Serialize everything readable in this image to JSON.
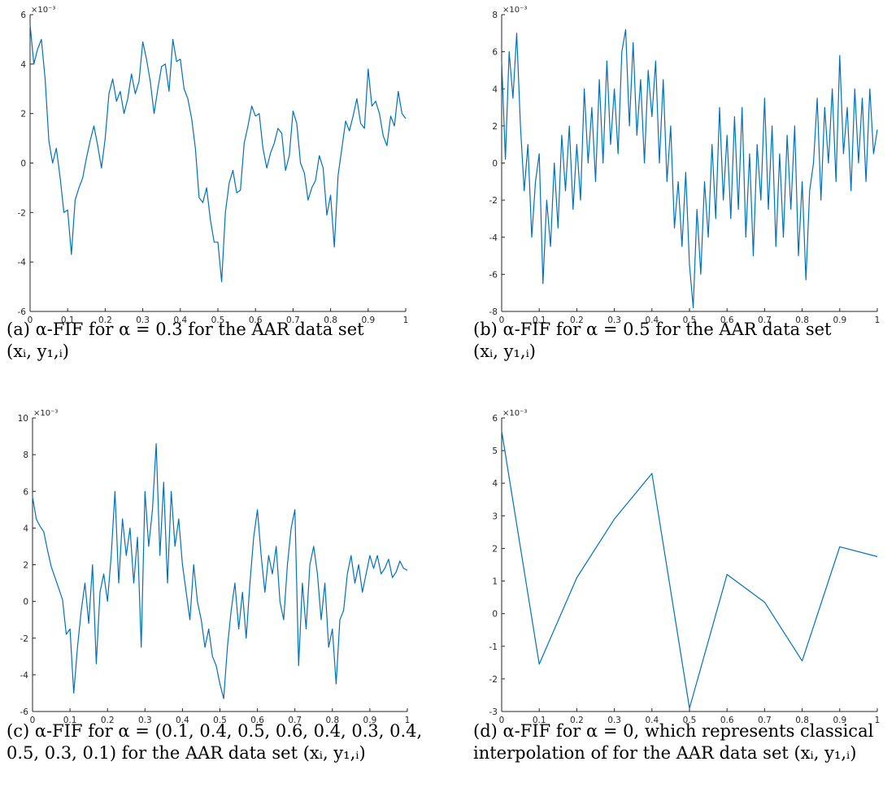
{
  "chart_data": [
    {
      "type": "line",
      "caption": "(a) α-FIF for α = 0.3 for the AAR data set (xᵢ, y₁,ᵢ)",
      "caption_line1": "(a) α-FIF for α = 0.3 for the AAR data set",
      "caption_line2": "(xᵢ, y₁,ᵢ)",
      "exponent_label": "×10⁻³",
      "xlim": [
        0,
        1
      ],
      "ylim": [
        -6,
        6
      ],
      "xticks": [
        "0",
        "0.1",
        "0.2",
        "0.3",
        "0.4",
        "0.5",
        "0.6",
        "0.7",
        "0.8",
        "0.9",
        "1"
      ],
      "yticks": [
        "-6",
        "-4",
        "-2",
        "0",
        "2",
        "4",
        "6"
      ],
      "line_color": "#0072BD",
      "series": [
        {
          "x": [
            0,
            0.01,
            0.02,
            0.03,
            0.04,
            0.05,
            0.06,
            0.07,
            0.08,
            0.09,
            0.1,
            0.11,
            0.12,
            0.13,
            0.14,
            0.15,
            0.16,
            0.17,
            0.18,
            0.19,
            0.2,
            0.21,
            0.22,
            0.23,
            0.24,
            0.25,
            0.26,
            0.27,
            0.28,
            0.29,
            0.3,
            0.31,
            0.32,
            0.33,
            0.34,
            0.35,
            0.36,
            0.37,
            0.38,
            0.39,
            0.4,
            0.41,
            0.42,
            0.43,
            0.44,
            0.45,
            0.46,
            0.47,
            0.48,
            0.49,
            0.5,
            0.51,
            0.52,
            0.53,
            0.54,
            0.55,
            0.56,
            0.57,
            0.58,
            0.59,
            0.6,
            0.61,
            0.62,
            0.63,
            0.64,
            0.65,
            0.66,
            0.67,
            0.68,
            0.69,
            0.7,
            0.71,
            0.72,
            0.73,
            0.74,
            0.75,
            0.76,
            0.77,
            0.78,
            0.79,
            0.8,
            0.81,
            0.82,
            0.83,
            0.84,
            0.85,
            0.86,
            0.87,
            0.88,
            0.89,
            0.9,
            0.91,
            0.92,
            0.93,
            0.94,
            0.95,
            0.96,
            0.97,
            0.98,
            0.99,
            1
          ],
          "y": [
            5.6,
            4.0,
            4.6,
            5.0,
            3.4,
            0.9,
            0.0,
            0.6,
            -0.6,
            -2.0,
            -1.9,
            -3.7,
            -1.5,
            -1.0,
            -0.6,
            0.2,
            0.9,
            1.5,
            0.7,
            -0.2,
            1.0,
            2.8,
            3.4,
            2.5,
            2.9,
            2.0,
            2.6,
            3.6,
            2.8,
            3.3,
            4.9,
            4.2,
            3.3,
            2.0,
            3.0,
            3.9,
            4.0,
            2.9,
            5.0,
            4.1,
            4.2,
            3.0,
            2.6,
            1.8,
            0.6,
            -1.4,
            -1.6,
            -1.0,
            -2.3,
            -3.2,
            -3.2,
            -4.8,
            -2.0,
            -0.8,
            -0.3,
            -1.2,
            -1.1,
            0.8,
            1.5,
            2.3,
            1.9,
            2.0,
            0.6,
            -0.2,
            0.4,
            0.8,
            1.4,
            1.2,
            -0.3,
            0.3,
            2.1,
            1.6,
            0.0,
            -0.4,
            -1.5,
            -1.0,
            -0.7,
            0.3,
            -0.2,
            -2.1,
            -1.3,
            -3.4,
            -0.5,
            0.6,
            1.7,
            1.3,
            1.9,
            2.6,
            1.6,
            1.4,
            3.8,
            2.3,
            2.5,
            2.0,
            1.1,
            0.7,
            1.9,
            1.5,
            2.9,
            2.0,
            1.8
          ]
        }
      ]
    },
    {
      "type": "line",
      "caption": "(b) α-FIF for α = 0.5 for the AAR data set (xᵢ, y₁,ᵢ)",
      "caption_line1": "(b) α-FIF for α = 0.5 for the AAR data set",
      "caption_line2": "(xᵢ, y₁,ᵢ)",
      "exponent_label": "×10⁻³",
      "xlim": [
        0,
        1
      ],
      "ylim": [
        -8,
        8
      ],
      "xticks": [
        "0",
        "0.1",
        "0.2",
        "0.3",
        "0.4",
        "0.5",
        "0.6",
        "0.7",
        "0.8",
        "0.9",
        "1"
      ],
      "yticks": [
        "-8",
        "-6",
        "-4",
        "-2",
        "0",
        "2",
        "4",
        "6",
        "8"
      ],
      "line_color": "#0072BD",
      "series": [
        {
          "x": [
            0,
            0.01,
            0.02,
            0.03,
            0.04,
            0.05,
            0.06,
            0.07,
            0.08,
            0.09,
            0.1,
            0.11,
            0.12,
            0.13,
            0.14,
            0.15,
            0.16,
            0.17,
            0.18,
            0.19,
            0.2,
            0.21,
            0.22,
            0.23,
            0.24,
            0.25,
            0.26,
            0.27,
            0.28,
            0.29,
            0.3,
            0.31,
            0.32,
            0.33,
            0.34,
            0.35,
            0.36,
            0.37,
            0.38,
            0.39,
            0.4,
            0.41,
            0.42,
            0.43,
            0.44,
            0.45,
            0.46,
            0.47,
            0.48,
            0.49,
            0.5,
            0.51,
            0.52,
            0.53,
            0.54,
            0.55,
            0.56,
            0.57,
            0.58,
            0.59,
            0.6,
            0.61,
            0.62,
            0.63,
            0.64,
            0.65,
            0.66,
            0.67,
            0.68,
            0.69,
            0.7,
            0.71,
            0.72,
            0.73,
            0.74,
            0.75,
            0.76,
            0.77,
            0.78,
            0.79,
            0.8,
            0.81,
            0.82,
            0.83,
            0.84,
            0.85,
            0.86,
            0.87,
            0.88,
            0.89,
            0.9,
            0.91,
            0.92,
            0.93,
            0.94,
            0.95,
            0.96,
            0.97,
            0.98,
            0.99,
            1
          ],
          "y": [
            5.5,
            0.2,
            6.0,
            3.5,
            7.0,
            2.0,
            -1.5,
            1.0,
            -4.0,
            -1.0,
            0.5,
            -6.5,
            -2.0,
            -4.5,
            0.0,
            -3.5,
            1.5,
            -1.5,
            2.0,
            -2.5,
            1.0,
            -2.0,
            4.0,
            0.0,
            3.0,
            -1.0,
            4.5,
            0.0,
            5.5,
            1.0,
            4.0,
            0.5,
            6.0,
            7.2,
            2.0,
            6.5,
            1.5,
            4.5,
            0.0,
            5.0,
            2.5,
            5.5,
            0.0,
            4.5,
            -1.0,
            2.0,
            -3.5,
            -1.0,
            -4.5,
            -0.5,
            -5.5,
            -7.8,
            -2.5,
            -6.0,
            -1.0,
            -4.0,
            1.0,
            -3.0,
            3.0,
            -2.0,
            1.5,
            -3.0,
            2.5,
            -2.5,
            3.0,
            -4.0,
            0.5,
            -5.0,
            1.0,
            -2.0,
            3.5,
            -2.5,
            2.0,
            -4.5,
            0.5,
            -4.0,
            1.5,
            -2.5,
            2.0,
            -5.0,
            -1.0,
            -6.3,
            -1.5,
            0.0,
            3.5,
            -2.0,
            3.0,
            0.0,
            4.0,
            -1.0,
            5.8,
            0.5,
            3.0,
            -1.5,
            4.0,
            0.0,
            3.5,
            -1.0,
            4.0,
            0.5,
            1.8
          ]
        }
      ]
    },
    {
      "type": "line",
      "caption": "(c) α-FIF for α = (0.1, 0.4, 0.5, 0.6, 0.4, 0.3, 0.4, 0.5, 0.3, 0.1) for the AAR data set (xᵢ, y₁,ᵢ)",
      "caption_line1": "(c) α-FIF for α = (0.1, 0.4, 0.5, 0.6, 0.4, 0.3, 0.4,",
      "caption_line2": "0.5, 0.3, 0.1) for the AAR data set (xᵢ, y₁,ᵢ)",
      "exponent_label": "×10⁻³",
      "xlim": [
        0,
        1
      ],
      "ylim": [
        -6,
        10
      ],
      "xticks": [
        "0",
        "0.1",
        "0.2",
        "0.3",
        "0.4",
        "0.5",
        "0.6",
        "0.7",
        "0.8",
        "0.9",
        "1"
      ],
      "yticks": [
        "-6",
        "-4",
        "-2",
        "0",
        "2",
        "4",
        "6",
        "8",
        "10"
      ],
      "line_color": "#0072BD",
      "series": [
        {
          "x": [
            0,
            0.01,
            0.02,
            0.03,
            0.04,
            0.05,
            0.06,
            0.07,
            0.08,
            0.09,
            0.1,
            0.11,
            0.12,
            0.13,
            0.14,
            0.15,
            0.16,
            0.17,
            0.18,
            0.19,
            0.2,
            0.21,
            0.22,
            0.23,
            0.24,
            0.25,
            0.26,
            0.27,
            0.28,
            0.29,
            0.3,
            0.31,
            0.32,
            0.33,
            0.34,
            0.35,
            0.36,
            0.37,
            0.38,
            0.39,
            0.4,
            0.41,
            0.42,
            0.43,
            0.44,
            0.45,
            0.46,
            0.47,
            0.48,
            0.49,
            0.5,
            0.51,
            0.52,
            0.53,
            0.54,
            0.55,
            0.56,
            0.57,
            0.58,
            0.59,
            0.6,
            0.61,
            0.62,
            0.63,
            0.64,
            0.65,
            0.66,
            0.67,
            0.68,
            0.69,
            0.7,
            0.71,
            0.72,
            0.73,
            0.74,
            0.75,
            0.76,
            0.77,
            0.78,
            0.79,
            0.8,
            0.81,
            0.82,
            0.83,
            0.84,
            0.85,
            0.86,
            0.87,
            0.88,
            0.89,
            0.9,
            0.91,
            0.92,
            0.93,
            0.94,
            0.95,
            0.96,
            0.97,
            0.98,
            0.99,
            1
          ],
          "y": [
            5.7,
            4.5,
            4.1,
            3.8,
            2.8,
            1.9,
            1.3,
            0.7,
            0.1,
            -1.8,
            -1.5,
            -5.0,
            -2.5,
            -0.5,
            1.0,
            -1.2,
            2.0,
            -3.4,
            0.5,
            1.5,
            0.0,
            2.5,
            6.0,
            1.0,
            4.5,
            2.5,
            4.0,
            1.0,
            3.5,
            -2.5,
            6.0,
            3.0,
            5.0,
            8.6,
            2.5,
            6.5,
            1.0,
            6.0,
            3.0,
            4.5,
            2.0,
            0.5,
            -1.0,
            2.0,
            0.0,
            -1.0,
            -2.5,
            -1.5,
            -3.0,
            -3.5,
            -4.5,
            -5.3,
            -2.5,
            -0.5,
            1.0,
            -1.5,
            0.5,
            -2.0,
            1.0,
            3.5,
            5.0,
            2.5,
            0.5,
            2.5,
            1.5,
            3.0,
            0.0,
            -1.0,
            2.0,
            4.0,
            5.0,
            -3.5,
            1.0,
            -1.5,
            2.0,
            3.0,
            1.5,
            -1.0,
            1.0,
            -2.5,
            -1.5,
            -4.5,
            -1.0,
            -0.5,
            1.5,
            2.5,
            1.0,
            2.0,
            0.5,
            1.5,
            2.5,
            1.8,
            2.5,
            1.5,
            1.8,
            2.3,
            1.3,
            1.6,
            2.2,
            1.8,
            1.7
          ]
        }
      ]
    },
    {
      "type": "line",
      "caption": "(d) α-FIF for α = 0, which represents classical interpolation of for the AAR data set (xᵢ, y₁,ᵢ)",
      "caption_line1": "(d) α-FIF for α = 0, which represents classical",
      "caption_line2": "interpolation of for the AAR data set (xᵢ, y₁,ᵢ)",
      "exponent_label": "×10⁻³",
      "xlim": [
        0,
        1
      ],
      "ylim": [
        -3,
        6
      ],
      "xticks": [
        "0",
        "0.1",
        "0.2",
        "0.3",
        "0.4",
        "0.5",
        "0.6",
        "0.7",
        "0.8",
        "0.9",
        "1"
      ],
      "yticks": [
        "-3",
        "-2",
        "-1",
        "0",
        "1",
        "2",
        "3",
        "4",
        "5",
        "6"
      ],
      "line_color": "#0072BD",
      "series": [
        {
          "x": [
            0,
            0.1,
            0.2,
            0.3,
            0.4,
            0.5,
            0.6,
            0.7,
            0.8,
            0.9,
            1
          ],
          "y": [
            5.6,
            -1.55,
            1.1,
            2.9,
            4.3,
            -2.9,
            1.2,
            0.35,
            -1.45,
            2.05,
            1.75
          ]
        }
      ]
    }
  ]
}
